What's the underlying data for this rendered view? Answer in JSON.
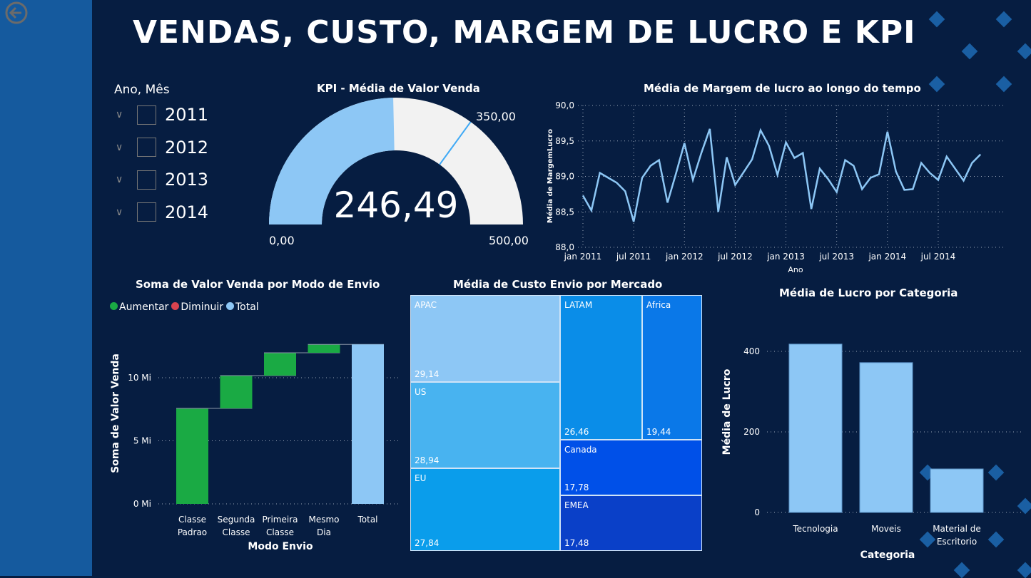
{
  "title": "VENDAS, CUSTO, MARGEM DE LUCRO E KPI",
  "colors": {
    "background": "#061d41",
    "side_panel": "#155a9e",
    "accent_light": "#8dc7f5",
    "increase": "#1aaa44",
    "decrease": "#d9434f",
    "decor": "#1a5fa3"
  },
  "nav": {
    "back_icon": "arrow-left-circle-icon"
  },
  "slicer": {
    "title": "Ano, Mês",
    "items": [
      {
        "label": "2011",
        "checked": false
      },
      {
        "label": "2012",
        "checked": false
      },
      {
        "label": "2013",
        "checked": false
      },
      {
        "label": "2014",
        "checked": false
      }
    ]
  },
  "chart_data": [
    {
      "type": "gauge",
      "title": "KPI - Média de Valor Venda",
      "value": 246.49,
      "value_label": "246,49",
      "min": 0,
      "max": 500,
      "target": 350,
      "min_label": "0,00",
      "max_label": "500,00",
      "target_label": "350,00"
    },
    {
      "type": "line",
      "title": "Média de Margem de lucro ao longo do tempo",
      "xlabel": "Ano",
      "ylabel": "Média de MargemLucro",
      "ylim": [
        88.0,
        90.0
      ],
      "yticks": [
        "88,0",
        "88,5",
        "89,0",
        "89,5",
        "90,0"
      ],
      "xticks": [
        "jan 2011",
        "jul 2011",
        "jan 2012",
        "jul 2012",
        "jan 2013",
        "jul 2013",
        "jan 2014",
        "jul 2014"
      ],
      "grid": true,
      "x_start": "2011-01",
      "x_end": "2014-12",
      "values": [
        88.73,
        88.52,
        89.05,
        88.98,
        88.91,
        88.79,
        88.36,
        88.98,
        89.15,
        89.23,
        88.63,
        89.04,
        89.47,
        88.95,
        89.33,
        89.67,
        88.5,
        89.27,
        88.88,
        89.06,
        89.24,
        89.65,
        89.43,
        89.02,
        89.48,
        89.26,
        89.33,
        88.54,
        89.11,
        88.96,
        88.78,
        89.23,
        89.15,
        88.82,
        88.98,
        89.03,
        89.63,
        89.07,
        88.81,
        88.82,
        89.19,
        89.05,
        88.95,
        89.28,
        89.11,
        88.94,
        89.19,
        89.31
      ]
    },
    {
      "type": "waterfall",
      "title": "Soma de Valor Venda por Modo de Envio",
      "xlabel": "Modo Envio",
      "ylabel": "Soma de Valor Venda",
      "legend": [
        "Aumentar",
        "Diminuir",
        "Total"
      ],
      "legend_position": "top-left",
      "ylim": [
        0,
        13.5
      ],
      "yticks": [
        "0 Mi",
        "5 Mi",
        "10 Mi"
      ],
      "unit": "Mi",
      "grid": true,
      "categories": [
        "Classe Padrao",
        "Segunda Classe",
        "Primeira Classe",
        "Mesmo Dia",
        "Total"
      ],
      "values": [
        7.57,
        2.6,
        1.81,
        0.66,
        12.64
      ]
    },
    {
      "type": "treemap",
      "title": "Média de Custo Envio por Mercado",
      "items": [
        {
          "label": "APAC",
          "value": "29,14"
        },
        {
          "label": "US",
          "value": "28,94"
        },
        {
          "label": "EU",
          "value": "27,84"
        },
        {
          "label": "LATAM",
          "value": "26,46"
        },
        {
          "label": "Africa",
          "value": "19,44"
        },
        {
          "label": "Canada",
          "value": "17,78"
        },
        {
          "label": "EMEA",
          "value": "17,48"
        }
      ]
    },
    {
      "type": "bar",
      "title": "Média de Lucro por Categoria",
      "xlabel": "Categoria",
      "ylabel": "Média de Lucro",
      "ylim": [
        0,
        450
      ],
      "yticks": [
        "0",
        "200",
        "400"
      ],
      "grid": true,
      "categories": [
        "Tecnologia",
        "Moveis",
        "Material de Escritorio"
      ],
      "values": [
        418,
        372,
        108
      ]
    }
  ]
}
